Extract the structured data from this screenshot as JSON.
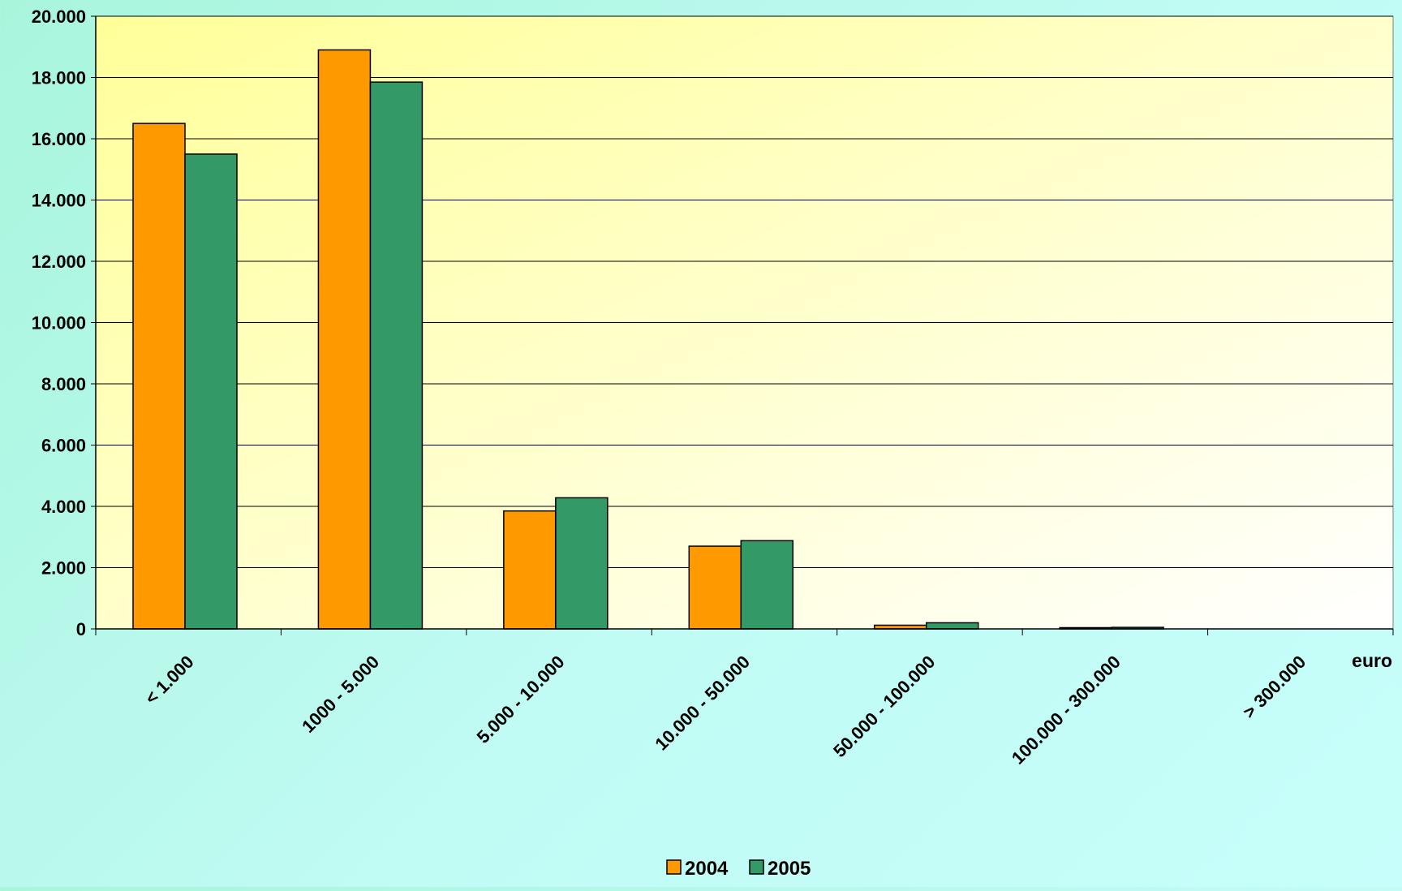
{
  "chart_data": {
    "type": "bar",
    "title": "",
    "xlabel": "euro",
    "ylabel": "",
    "ylim": [
      0,
      20000
    ],
    "y_ticks": [
      0,
      2000,
      4000,
      6000,
      8000,
      10000,
      12000,
      14000,
      16000,
      18000,
      20000
    ],
    "y_tick_labels": [
      "0",
      "2.000",
      "4.000",
      "6.000",
      "8.000",
      "10.000",
      "12.000",
      "14.000",
      "16.000",
      "18.000",
      "20.000"
    ],
    "categories": [
      "< 1.000",
      "1000 - 5.000",
      "5.000 - 10.000",
      "10.000 - 50.000",
      "50.000 - 100.000",
      "100.000 - 300.000",
      "> 300.000"
    ],
    "series": [
      {
        "name": "2004",
        "color": "#ff9900",
        "values": [
          16500,
          18900,
          3850,
          2700,
          120,
          40,
          0
        ]
      },
      {
        "name": "2005",
        "color": "#339966",
        "values": [
          15500,
          17850,
          4280,
          2880,
          200,
          50,
          0
        ]
      }
    ],
    "grid": true,
    "legend_position": "bottom",
    "plot_background": [
      "#ffff99",
      "#ffffff"
    ]
  }
}
